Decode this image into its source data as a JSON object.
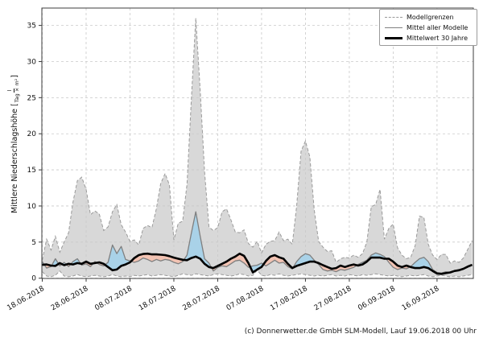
{
  "figure": {
    "ylabel": {
      "prefix": "Mittlere Niederschlagshöhe [",
      "numerator": "l",
      "denominator": "Tag × m²",
      "suffix": "]"
    },
    "caption": "(c) Donnerwetter.de GmbH SLM-Modell, Lauf 19.06.2018 00 Uhr",
    "legend_items": [
      {
        "label": "Modellgrenzen"
      },
      {
        "label": "Mittel aller Modelle"
      },
      {
        "label": "Mittelwert 30 Jahre"
      }
    ],
    "colors": {
      "band_fill": "#d8d8d8",
      "band_edge": "#9a9a9a",
      "model_mean_line": "#7f7f7f",
      "mean30_line": "#000000",
      "above_fill": "#a9d2e8",
      "below_fill": "#f2c3b3",
      "grid": "#c9c9c9",
      "frame": "#3c3c3c",
      "tick_text": "#111111"
    }
  },
  "chart_data": {
    "type": "line",
    "title": "",
    "xlabel": "",
    "ylabel": "Mittlere Niederschlagshöhe [l/(Tag × m²)]",
    "x_unit": "days since 18.06.2018",
    "x_tick_days": [
      0,
      10,
      20,
      30,
      40,
      50,
      60,
      70,
      80,
      90
    ],
    "x_tick_labels": [
      "18.06.2018",
      "28.06.2018",
      "08.07.2018",
      "18.07.2018",
      "28.07.2018",
      "07.08.2018",
      "17.08.2018",
      "27.08.2018",
      "06.09.2018",
      "16.09.2018"
    ],
    "days_total": 98,
    "ylim": [
      0,
      37.4
    ],
    "yticks": [
      0,
      5,
      10,
      15,
      20,
      25,
      30,
      35
    ],
    "grid": true,
    "legend_position": "upper right",
    "series": [
      {
        "name": "Modellgrenze oben",
        "values": [
          2.5,
          5.4,
          3.9,
          5.8,
          3.6,
          5.0,
          6.3,
          10.5,
          13.5,
          14.0,
          12.3,
          8.8,
          9.3,
          8.9,
          6.6,
          7.1,
          9.2,
          10.2,
          7.4,
          6.4,
          5.1,
          5.3,
          4.6,
          6.9,
          7.3,
          7.0,
          9.6,
          13.1,
          14.5,
          12.9,
          5.3,
          7.6,
          7.9,
          13.0,
          25.0,
          36.0,
          26.0,
          14.8,
          7.1,
          6.6,
          7.0,
          9.2,
          9.6,
          8.1,
          6.4,
          6.3,
          6.7,
          4.8,
          4.3,
          5.1,
          3.5,
          4.7,
          5.1,
          5.2,
          6.4,
          5.2,
          5.4,
          4.7,
          10.0,
          17.6,
          19.0,
          16.8,
          9.5,
          5.1,
          4.3,
          3.7,
          3.8,
          2.2,
          2.7,
          2.9,
          2.8,
          3.2,
          2.9,
          3.4,
          5.0,
          9.9,
          10.2,
          12.3,
          5.4,
          6.9,
          7.5,
          4.2,
          3.2,
          2.7,
          2.9,
          4.5,
          8.6,
          8.4,
          4.7,
          3.2,
          2.6,
          3.3,
          3.3,
          2.1,
          2.4,
          2.2,
          2.8,
          4.0,
          5.2
        ]
      },
      {
        "name": "Modellgrenze unten",
        "values": [
          0.9,
          0.3,
          0.2,
          0.4,
          1.0,
          0.3,
          0.2,
          0.3,
          0.5,
          0.3,
          0.2,
          0.3,
          0.4,
          0.3,
          0.2,
          0.3,
          0.5,
          0.3,
          0.2,
          0.3,
          0.2,
          0.4,
          0.3,
          0.4,
          0.5,
          0.3,
          0.4,
          0.5,
          0.4,
          0.3,
          0.2,
          0.4,
          0.6,
          0.5,
          0.4,
          0.6,
          0.5,
          0.4,
          0.3,
          0.5,
          0.6,
          0.5,
          0.4,
          0.3,
          0.4,
          0.6,
          0.5,
          0.3,
          0.4,
          1.1,
          0.4,
          0.3,
          0.5,
          0.4,
          0.6,
          0.4,
          0.3,
          0.4,
          0.5,
          0.6,
          0.5,
          0.4,
          0.3,
          0.4,
          0.3,
          0.4,
          0.5,
          0.3,
          0.4,
          0.3,
          0.5,
          0.4,
          0.3,
          0.5,
          0.4,
          0.5,
          0.6,
          0.5,
          0.4,
          0.3,
          0.4,
          0.3,
          0.2,
          0.3,
          0.4,
          0.3,
          0.4,
          0.5,
          0.3,
          0.2,
          0.3,
          0.4,
          0.3,
          0.2,
          0.3,
          0.2,
          0.3,
          0.4,
          0.5
        ]
      },
      {
        "name": "Mittel aller Modelle",
        "values": [
          2.3,
          1.4,
          1.6,
          2.7,
          1.7,
          2.2,
          1.6,
          2.3,
          2.7,
          1.8,
          2.0,
          1.6,
          2.3,
          1.9,
          1.7,
          2.2,
          4.6,
          3.4,
          4.4,
          2.6,
          2.4,
          2.2,
          2.4,
          2.8,
          2.6,
          2.3,
          2.6,
          2.4,
          2.6,
          2.5,
          2.2,
          2.0,
          2.3,
          3.2,
          6.3,
          9.2,
          5.8,
          2.7,
          2.1,
          1.0,
          1.5,
          1.7,
          1.6,
          2.0,
          2.4,
          2.5,
          2.1,
          1.5,
          1.7,
          1.8,
          2.1,
          1.7,
          2.1,
          2.5,
          2.1,
          2.2,
          1.6,
          1.3,
          2.3,
          3.0,
          3.4,
          3.2,
          2.5,
          1.9,
          1.2,
          1.0,
          1.1,
          0.9,
          1.2,
          1.1,
          1.3,
          1.5,
          1.9,
          2.2,
          2.5,
          3.2,
          3.5,
          3.3,
          3.0,
          2.2,
          1.5,
          1.2,
          1.4,
          1.3,
          1.6,
          2.2,
          2.7,
          2.9,
          2.3,
          1.2,
          0.8,
          0.7,
          0.9,
          0.8,
          1.0,
          1.2,
          1.3,
          1.7,
          1.9
        ]
      },
      {
        "name": "Mittelwert 30 Jahre",
        "values": [
          1.85,
          1.9,
          1.75,
          1.7,
          2.1,
          1.8,
          2.0,
          1.9,
          2.1,
          2.0,
          2.3,
          2.0,
          2.1,
          2.2,
          2.0,
          1.55,
          1.1,
          1.2,
          1.7,
          1.9,
          2.2,
          2.8,
          3.2,
          3.35,
          3.4,
          3.3,
          3.3,
          3.25,
          3.2,
          3.05,
          2.85,
          2.7,
          2.55,
          2.5,
          2.8,
          3.0,
          2.7,
          2.0,
          1.55,
          1.4,
          1.7,
          2.0,
          2.3,
          2.7,
          3.0,
          3.4,
          3.1,
          2.1,
          0.8,
          1.2,
          1.55,
          2.4,
          3.0,
          3.2,
          2.9,
          2.7,
          2.0,
          1.4,
          1.7,
          1.9,
          2.1,
          2.3,
          2.3,
          2.1,
          1.8,
          1.55,
          1.3,
          1.4,
          1.75,
          1.55,
          1.75,
          1.9,
          1.75,
          1.9,
          2.3,
          2.85,
          2.85,
          2.85,
          2.7,
          2.7,
          2.3,
          1.75,
          1.55,
          1.75,
          1.55,
          1.4,
          1.4,
          1.55,
          1.4,
          1.0,
          0.65,
          0.6,
          0.7,
          0.8,
          1.0,
          1.1,
          1.3,
          1.6,
          1.85
        ]
      }
    ]
  }
}
